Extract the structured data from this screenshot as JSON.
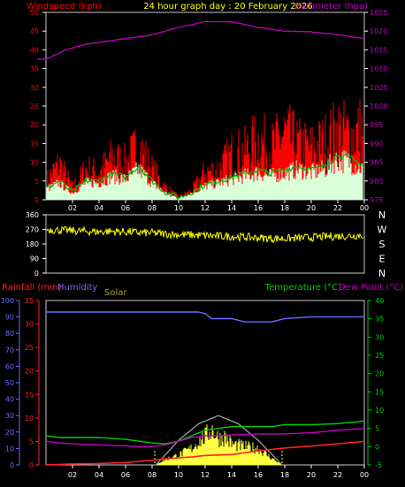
{
  "title": "24 hour graph day : 20 February 2026",
  "colors": {
    "background": "#000000",
    "frame": "#c8c8c8",
    "grid_tick": "#ffffff",
    "windspeed": "#ff0000",
    "gust": "#ff0000",
    "avg_wind": "#00c000",
    "wind_avg_fill": "#d8ffd8",
    "barometer": "#c000c0",
    "direction": "#ffff00",
    "rainfall": "#ff2020",
    "humidity": "#6a6aff",
    "solar": "#ffff40",
    "solar_max": "#a0a0a0",
    "temperature": "#00d000",
    "dewpoint": "#c000c0"
  },
  "chart_data": [
    {
      "type": "line",
      "panel": "wind-barometer",
      "labels": {
        "left": "Windspeed (kph)",
        "right": "Barometer (hpa)"
      },
      "x": {
        "ticks": [
          "02",
          "04",
          "06",
          "08",
          "10",
          "12",
          "14",
          "16",
          "18",
          "20",
          "22",
          "00"
        ],
        "range_hours": [
          0,
          24
        ]
      },
      "y_left": {
        "ticks": [
          0,
          5,
          10,
          15,
          20,
          25,
          30,
          35,
          40,
          45,
          50
        ],
        "ylim": [
          0,
          50
        ]
      },
      "y_right": {
        "ticks": [
          975,
          980,
          985,
          990,
          995,
          1000,
          1005,
          1010,
          1015,
          1020,
          1025
        ],
        "ylim": [
          975,
          1025
        ]
      },
      "series": [
        {
          "name": "Windspeed (kph)",
          "kind": "gust",
          "values": [
            6,
            12,
            4,
            10,
            9,
            14,
            12,
            18,
            10,
            4,
            1,
            3,
            9,
            10,
            15,
            16,
            20,
            17,
            22,
            18,
            17,
            19,
            23,
            21,
            24
          ],
          "hours": [
            0,
            1,
            2,
            3,
            4,
            5,
            6,
            7,
            8,
            9,
            10,
            11,
            12,
            13,
            14,
            15,
            16,
            17,
            18,
            19,
            20,
            21,
            22,
            23,
            24
          ]
        },
        {
          "name": "avg",
          "kind": "avg",
          "values": [
            3,
            5,
            2,
            5,
            5,
            7,
            6,
            9,
            5,
            2,
            0.5,
            2,
            4,
            5,
            6,
            7,
            8,
            7,
            8,
            9,
            8,
            9,
            12,
            11,
            9
          ],
          "hours": [
            0,
            1,
            2,
            3,
            4,
            5,
            6,
            7,
            8,
            9,
            10,
            11,
            12,
            13,
            14,
            15,
            16,
            17,
            18,
            19,
            20,
            21,
            22,
            23,
            24
          ]
        },
        {
          "name": "Barometer (hpa)",
          "axis": "right",
          "values": [
            1012.5,
            1015,
            1016.5,
            1017.5,
            1019,
            1021,
            1022.5,
            1022.5,
            1021,
            1020,
            1019.8,
            1019,
            1018
          ],
          "hours": [
            0,
            1.5,
            3,
            5,
            8,
            10,
            12,
            14,
            16,
            18,
            20,
            22,
            24
          ]
        }
      ]
    },
    {
      "type": "scatter",
      "panel": "wind-direction",
      "y": {
        "ticks": [
          360,
          270,
          180,
          90,
          0
        ],
        "ylim": [
          0,
          360
        ]
      },
      "compass": [
        "N",
        "W",
        "S",
        "E",
        "N"
      ],
      "x": {
        "range_hours": [
          0,
          24
        ]
      },
      "series": [
        {
          "name": "direction",
          "values": [
            270,
            265,
            262,
            258,
            255,
            258,
            255,
            250,
            248,
            242,
            238,
            235,
            232,
            228,
            226,
            222,
            218,
            214,
            213,
            216,
            220,
            225,
            228,
            230,
            235
          ],
          "hours": [
            0,
            1,
            2,
            3,
            4,
            5,
            6,
            7,
            8,
            9,
            10,
            11,
            12,
            13,
            14,
            15,
            16,
            17,
            18,
            19,
            20,
            21,
            22,
            23,
            24
          ]
        }
      ]
    },
    {
      "type": "line",
      "panel": "rain-humidity-solar-temp",
      "labels": {
        "rainfall": "Rainfall (mm)",
        "humidity": "Humidity",
        "solar": "Solar",
        "temperature": "Temperature (°C)",
        "dewpoint": "Dew Point (°C)"
      },
      "x": {
        "ticks": [
          "02",
          "04",
          "06",
          "08",
          "10",
          "12",
          "14",
          "16",
          "18",
          "20",
          "22",
          "00"
        ],
        "range_hours": [
          0,
          24
        ]
      },
      "y_humidity": {
        "ticks": [
          0,
          10,
          20,
          30,
          40,
          50,
          60,
          70,
          80,
          90,
          100
        ],
        "ylim": [
          0,
          100
        ]
      },
      "y_rain": {
        "ticks": [
          0,
          5,
          10,
          15,
          20,
          25,
          30,
          35
        ],
        "ylim": [
          0,
          35
        ]
      },
      "y_temp": {
        "ticks": [
          -5,
          0,
          5,
          10,
          15,
          20,
          25,
          30,
          35,
          40
        ],
        "ylim": [
          -5,
          40
        ]
      },
      "series": [
        {
          "name": "Humidity",
          "axis": "humidity",
          "values": [
            93,
            93,
            93,
            93,
            93,
            93,
            93,
            92,
            89,
            89,
            87,
            87,
            89,
            90,
            90
          ],
          "hours": [
            0,
            3,
            6,
            9,
            10.5,
            11,
            11.5,
            12,
            12.5,
            14,
            15,
            17,
            18,
            20,
            24
          ]
        },
        {
          "name": "Rainfall (mm)",
          "axis": "rain",
          "values": [
            0,
            0.2,
            0.3,
            0.5,
            1,
            1.3,
            1.5,
            1.7,
            2,
            2.2,
            3,
            3.3,
            3.6,
            4,
            5
          ],
          "hours": [
            0,
            2,
            4,
            6,
            8,
            9,
            10,
            11,
            12,
            14,
            16,
            17,
            18,
            20,
            24
          ]
        },
        {
          "name": "Temperature (°C)",
          "axis": "temp",
          "values": [
            3,
            2.5,
            2.5,
            2.5,
            2,
            1,
            0.8,
            1.5,
            3,
            4.5,
            5,
            5.5,
            5.5,
            5.5,
            5.5,
            6,
            6,
            6.3,
            7
          ],
          "hours": [
            0,
            1,
            2,
            4,
            6,
            8,
            9,
            10,
            11,
            12,
            13,
            14,
            15,
            16,
            17,
            18,
            20,
            22,
            24
          ]
        },
        {
          "name": "Dew Point (°C)",
          "axis": "temp",
          "values": [
            1.5,
            1,
            0.8,
            0.5,
            0.2,
            0,
            0,
            0.5,
            1.5,
            2.5,
            3,
            3,
            3.2,
            3.5,
            3.5,
            3.8,
            4.5,
            5
          ],
          "hours": [
            0,
            1,
            2,
            4,
            6,
            7,
            8,
            9,
            10,
            11,
            12,
            13,
            14,
            16,
            18,
            20,
            22,
            24
          ]
        },
        {
          "name": "Solar",
          "axis": "humidity",
          "values": [
            0,
            4,
            7,
            12,
            17,
            20,
            26,
            19,
            20,
            15,
            13,
            12,
            5,
            0
          ],
          "hours": [
            8.2,
            9,
            10,
            11,
            11.5,
            12,
            12.5,
            13,
            13.5,
            14,
            15,
            16,
            17,
            17.8
          ]
        },
        {
          "name": "solar max",
          "axis": "humidity",
          "values": [
            0,
            15,
            25,
            30,
            25,
            15,
            0
          ],
          "hours": [
            8.3,
            10,
            11.5,
            13,
            14.5,
            16,
            17.8
          ]
        }
      ]
    }
  ]
}
